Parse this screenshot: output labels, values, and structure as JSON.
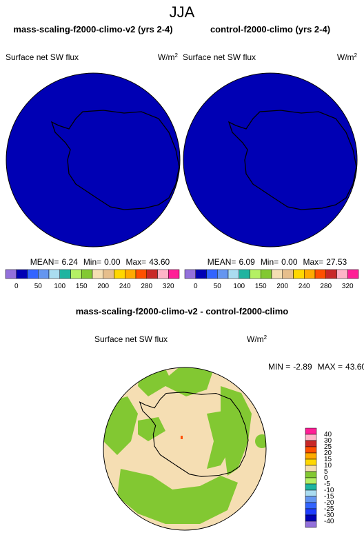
{
  "title": "JJA",
  "panels": [
    {
      "title": "mass-scaling-f2000-climo-v2 (yrs 2-4)",
      "subtitle": "Surface net SW flux",
      "units": "W/m",
      "units_sup": "2",
      "stats": [
        {
          "label": "MEAN=",
          "value": "6.24"
        },
        {
          "label": "Min=",
          "value": "0.00"
        },
        {
          "label": "Max=",
          "value": "43.60"
        }
      ]
    },
    {
      "title": "control-f2000-climo (yrs 2-4)",
      "subtitle": "Surface net SW flux",
      "units": "W/m",
      "units_sup": "2",
      "stats": [
        {
          "label": "MEAN=",
          "value": "6.09"
        },
        {
          "label": "Min=",
          "value": "0.00"
        },
        {
          "label": "Max=",
          "value": "27.53"
        }
      ]
    }
  ],
  "colorbar": {
    "colors": [
      "#9370db",
      "#0000b4",
      "#3264ff",
      "#6496f0",
      "#aadcf0",
      "#1eb4a0",
      "#b4f064",
      "#82c832",
      "#f5deb3",
      "#e6be8c",
      "#ffd700",
      "#ffaa00",
      "#ff5000",
      "#c82828",
      "#ffb4c8",
      "#ff1e96"
    ],
    "labels": [
      0,
      50,
      100,
      150,
      200,
      240,
      280,
      320
    ]
  },
  "diff": {
    "title": "mass-scaling-f2000-climo-v2 - control-f2000-climo",
    "subtitle": "Surface net SW flux",
    "units": "W/m",
    "units_sup": "2",
    "stats": [
      {
        "label": "MIN =",
        "value": "-2.89"
      },
      {
        "label": "MAX =",
        "value": "43.60"
      }
    ],
    "colorbar": {
      "colors": [
        "#ff1e96",
        "#ffb4c8",
        "#c82828",
        "#ff5000",
        "#ffaa00",
        "#ffd700",
        "#f5deb3",
        "#82c832",
        "#b4f064",
        "#1eb4a0",
        "#aadcf0",
        "#6496f0",
        "#3264ff",
        "#1e3cff",
        "#0000b4",
        "#9370db"
      ],
      "labels": [
        40,
        30,
        25,
        20,
        15,
        10,
        5,
        0,
        -5,
        -10,
        -15,
        -20,
        -25,
        -30,
        -40
      ]
    }
  }
}
